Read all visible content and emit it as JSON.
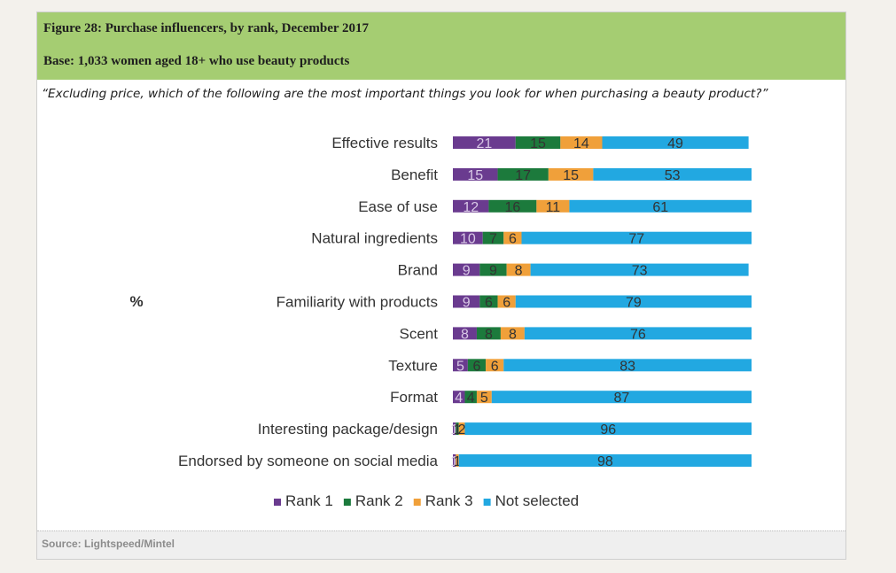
{
  "figure": {
    "title": "Figure 28: Purchase influencers, by rank, December 2017",
    "base": "Base: 1,033 women aged 18+ who use beauty products",
    "question": "“Excluding price, which of the following are the most important things you look for when purchasing a beauty product?”",
    "source": "Source: Lightspeed/Mintel"
  },
  "chart_data": {
    "type": "bar",
    "orientation": "horizontal",
    "stacked": true,
    "ylabel": "%",
    "categories": [
      "Effective results",
      "Benefit",
      "Ease of  use",
      "Natural ingredients",
      "Brand",
      "Familiarity with products",
      "Scent",
      "Texture",
      "Format",
      "Interesting package/design",
      "Endorsed by someone on social media"
    ],
    "series": [
      {
        "name": "Rank 1",
        "color": "#6a3b8f",
        "values": [
          21,
          15,
          12,
          10,
          9,
          9,
          8,
          5,
          4,
          1,
          1
        ]
      },
      {
        "name": "Rank 2",
        "color": "#1c7a3c",
        "values": [
          15,
          17,
          16,
          7,
          9,
          6,
          8,
          6,
          4,
          1,
          0
        ]
      },
      {
        "name": "Rank 3",
        "color": "#f0a03a",
        "values": [
          14,
          15,
          11,
          6,
          8,
          6,
          8,
          6,
          5,
          2,
          1
        ]
      },
      {
        "name": "Not selected",
        "color": "#22a8e1",
        "values": [
          49,
          53,
          61,
          77,
          73,
          79,
          76,
          83,
          87,
          96,
          98
        ]
      }
    ],
    "xlim": [
      0,
      100
    ],
    "grid": false,
    "legend": "bottom"
  }
}
